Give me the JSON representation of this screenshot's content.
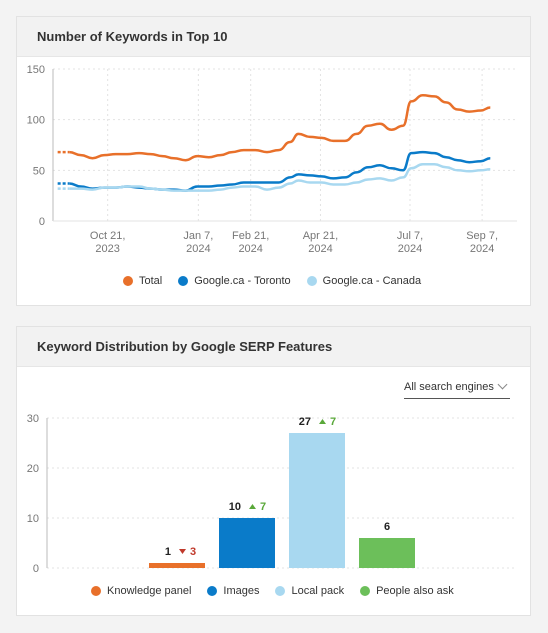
{
  "chart_data": [
    {
      "type": "line",
      "title": "Number of Keywords in Top 10",
      "ylim": [
        0,
        150
      ],
      "yticks": [
        0,
        50,
        100,
        150
      ],
      "x_range": [
        "2023-09-04",
        "2024-10-07"
      ],
      "xticks": [
        {
          "date": "2023-10-21",
          "line1": "Oct 21,",
          "line2": "2023"
        },
        {
          "date": "2024-01-07",
          "line1": "Jan 7,",
          "line2": "2024"
        },
        {
          "date": "2024-02-21",
          "line1": "Feb 21,",
          "line2": "2024"
        },
        {
          "date": "2024-04-21",
          "line1": "Apr 21,",
          "line2": "2024"
        },
        {
          "date": "2024-07-07",
          "line1": "Jul 7,",
          "line2": "2024"
        },
        {
          "date": "2024-09-07",
          "line1": "Sep 7,",
          "line2": "2024"
        }
      ],
      "grid": true,
      "legend_position": "bottom",
      "series": [
        {
          "name": "Total",
          "color": "#e8702a",
          "points": [
            [
              "2023-09-08",
              68
            ],
            [
              "2023-09-18",
              68
            ],
            [
              "2023-09-28",
              65
            ],
            [
              "2023-10-08",
              62
            ],
            [
              "2023-10-18",
              65
            ],
            [
              "2023-10-28",
              66
            ],
            [
              "2023-11-07",
              66
            ],
            [
              "2023-11-17",
              67
            ],
            [
              "2023-11-27",
              66
            ],
            [
              "2023-12-07",
              64
            ],
            [
              "2023-12-17",
              62
            ],
            [
              "2023-12-27",
              60
            ],
            [
              "2024-01-06",
              64
            ],
            [
              "2024-01-16",
              63
            ],
            [
              "2024-01-26",
              65
            ],
            [
              "2024-02-05",
              68
            ],
            [
              "2024-02-15",
              70
            ],
            [
              "2024-02-25",
              70
            ],
            [
              "2024-03-06",
              68
            ],
            [
              "2024-03-16",
              70
            ],
            [
              "2024-03-26",
              78
            ],
            [
              "2024-04-02",
              86
            ],
            [
              "2024-04-12",
              83
            ],
            [
              "2024-04-22",
              82
            ],
            [
              "2024-05-02",
              79
            ],
            [
              "2024-05-12",
              79
            ],
            [
              "2024-05-22",
              86
            ],
            [
              "2024-06-01",
              94
            ],
            [
              "2024-06-11",
              96
            ],
            [
              "2024-06-21",
              90
            ],
            [
              "2024-07-01",
              94
            ],
            [
              "2024-07-08",
              118
            ],
            [
              "2024-07-18",
              124
            ],
            [
              "2024-07-28",
              123
            ],
            [
              "2024-08-07",
              117
            ],
            [
              "2024-08-17",
              110
            ],
            [
              "2024-08-27",
              108
            ],
            [
              "2024-09-06",
              109
            ],
            [
              "2024-09-14",
              112
            ]
          ]
        },
        {
          "name": "Google.ca - Toronto",
          "color": "#0a7bc9",
          "points": [
            [
              "2023-09-08",
              37
            ],
            [
              "2023-09-18",
              37
            ],
            [
              "2023-09-28",
              34
            ],
            [
              "2023-10-08",
              32
            ],
            [
              "2023-10-18",
              33
            ],
            [
              "2023-10-28",
              33
            ],
            [
              "2023-11-07",
              34
            ],
            [
              "2023-11-17",
              33
            ],
            [
              "2023-11-27",
              32
            ],
            [
              "2023-12-07",
              31
            ],
            [
              "2023-12-17",
              31
            ],
            [
              "2023-12-27",
              30
            ],
            [
              "2024-01-06",
              34
            ],
            [
              "2024-01-16",
              34
            ],
            [
              "2024-01-26",
              35
            ],
            [
              "2024-02-05",
              36
            ],
            [
              "2024-02-15",
              38
            ],
            [
              "2024-02-25",
              38
            ],
            [
              "2024-03-06",
              38
            ],
            [
              "2024-03-16",
              38
            ],
            [
              "2024-03-26",
              43
            ],
            [
              "2024-04-02",
              46
            ],
            [
              "2024-04-12",
              45
            ],
            [
              "2024-04-22",
              44
            ],
            [
              "2024-05-02",
              42
            ],
            [
              "2024-05-12",
              43
            ],
            [
              "2024-05-22",
              48
            ],
            [
              "2024-06-01",
              53
            ],
            [
              "2024-06-11",
              55
            ],
            [
              "2024-06-21",
              52
            ],
            [
              "2024-07-01",
              50
            ],
            [
              "2024-07-08",
              67
            ],
            [
              "2024-07-18",
              68
            ],
            [
              "2024-07-28",
              67
            ],
            [
              "2024-08-07",
              63
            ],
            [
              "2024-08-17",
              60
            ],
            [
              "2024-08-27",
              58
            ],
            [
              "2024-09-06",
              59
            ],
            [
              "2024-09-14",
              62
            ]
          ]
        },
        {
          "name": "Google.ca - Canada",
          "color": "#a8d8f0",
          "points": [
            [
              "2023-09-08",
              32
            ],
            [
              "2023-09-18",
              32
            ],
            [
              "2023-09-28",
              32
            ],
            [
              "2023-10-08",
              31
            ],
            [
              "2023-10-18",
              33
            ],
            [
              "2023-10-28",
              33
            ],
            [
              "2023-11-07",
              34
            ],
            [
              "2023-11-17",
              34
            ],
            [
              "2023-11-27",
              32
            ],
            [
              "2023-12-07",
              31
            ],
            [
              "2023-12-17",
              30
            ],
            [
              "2023-12-27",
              30
            ],
            [
              "2024-01-06",
              30
            ],
            [
              "2024-01-16",
              30
            ],
            [
              "2024-01-26",
              31
            ],
            [
              "2024-02-05",
              33
            ],
            [
              "2024-02-15",
              34
            ],
            [
              "2024-02-25",
              34
            ],
            [
              "2024-03-06",
              31
            ],
            [
              "2024-03-16",
              33
            ],
            [
              "2024-03-26",
              37
            ],
            [
              "2024-04-02",
              40
            ],
            [
              "2024-04-12",
              38
            ],
            [
              "2024-04-22",
              38
            ],
            [
              "2024-05-02",
              36
            ],
            [
              "2024-05-12",
              36
            ],
            [
              "2024-05-22",
              38
            ],
            [
              "2024-06-01",
              41
            ],
            [
              "2024-06-11",
              42
            ],
            [
              "2024-06-21",
              40
            ],
            [
              "2024-07-01",
              43
            ],
            [
              "2024-07-08",
              52
            ],
            [
              "2024-07-18",
              56
            ],
            [
              "2024-07-28",
              56
            ],
            [
              "2024-08-07",
              53
            ],
            [
              "2024-08-17",
              50
            ],
            [
              "2024-08-27",
              49
            ],
            [
              "2024-09-06",
              50
            ],
            [
              "2024-09-14",
              51
            ]
          ]
        }
      ]
    },
    {
      "type": "bar",
      "title": "Keyword Distribution by Google SERP Features",
      "ylim": [
        0,
        30
      ],
      "yticks": [
        0,
        10,
        20,
        30
      ],
      "grid": true,
      "legend_position": "bottom",
      "categories": [
        "Knowledge panel",
        "Images",
        "Local pack",
        "People also ask"
      ],
      "values": [
        1,
        10,
        27,
        6
      ],
      "colors": [
        "#e8702a",
        "#0a7bc9",
        "#a8d8f0",
        "#6cbf5a"
      ],
      "changes": [
        {
          "direction": "down",
          "text": "3",
          "color": "#c0392b"
        },
        {
          "direction": "up",
          "text": "7",
          "color": "#5aa83a"
        },
        {
          "direction": "up",
          "text": "7",
          "color": "#5aa83a"
        },
        null
      ]
    }
  ],
  "filter": {
    "label": "All search engines"
  },
  "icons": {
    "dropdown": "chevron-down-icon",
    "up": "triangle-up-icon",
    "down": "triangle-down-icon"
  }
}
